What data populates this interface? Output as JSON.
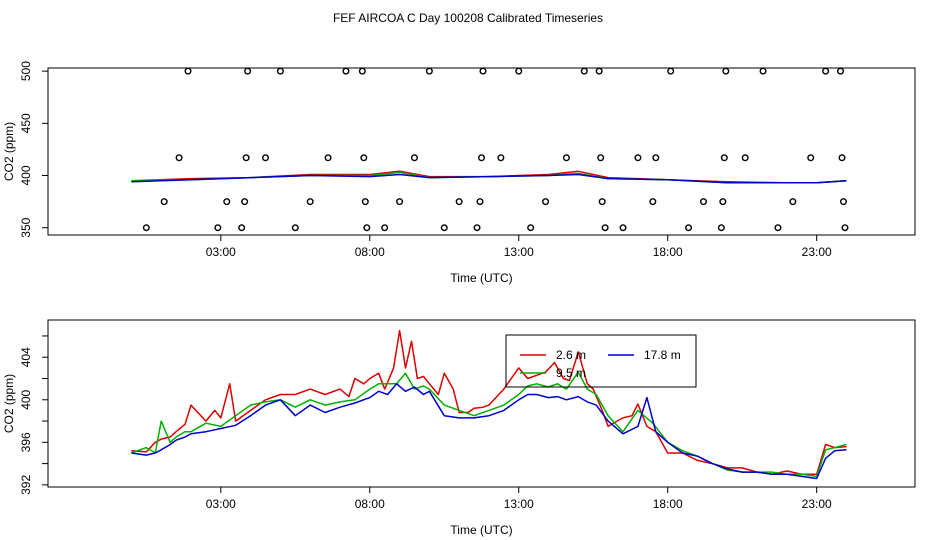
{
  "figure_title": "FEF AIRCOA C  Day 100208  Calibrated Timeseries",
  "colors": {
    "red": "#dd0000",
    "green": "#00b000",
    "blue": "#0000cc",
    "purple": "#6600aa"
  },
  "chart_data": [
    {
      "type": "scatter+line",
      "xlabel": "Time (UTC)",
      "ylabel": "CO2 (ppm)",
      "xlim": [
        -2.8,
        26.3
      ],
      "ylim": [
        343,
        503
      ],
      "xticks": [
        {
          "v": 3,
          "label": "03:00"
        },
        {
          "v": 8,
          "label": "08:00"
        },
        {
          "v": 13,
          "label": "13:00"
        },
        {
          "v": 18,
          "label": "18:00"
        },
        {
          "v": 23,
          "label": "23:00"
        }
      ],
      "yticks": [
        {
          "v": 350,
          "label": "350"
        },
        {
          "v": 400,
          "label": "400"
        },
        {
          "v": 450,
          "label": "450"
        },
        {
          "v": 500,
          "label": "500"
        }
      ],
      "points": [
        [
          0.5,
          350
        ],
        [
          1.1,
          375
        ],
        [
          1.6,
          417
        ],
        [
          1.9,
          500
        ],
        [
          2.9,
          350
        ],
        [
          3.2,
          375
        ],
        [
          3.7,
          350
        ],
        [
          3.8,
          375
        ],
        [
          3.85,
          417
        ],
        [
          3.9,
          500
        ],
        [
          4.5,
          417
        ],
        [
          5.0,
          500
        ],
        [
          5.5,
          350
        ],
        [
          6.0,
          375
        ],
        [
          6.6,
          417
        ],
        [
          7.2,
          500
        ],
        [
          7.75,
          500
        ],
        [
          7.8,
          417
        ],
        [
          7.85,
          375
        ],
        [
          7.9,
          350
        ],
        [
          8.5,
          350
        ],
        [
          9.0,
          375
        ],
        [
          9.5,
          417
        ],
        [
          10.0,
          500
        ],
        [
          10.5,
          350
        ],
        [
          11.0,
          375
        ],
        [
          11.6,
          350
        ],
        [
          11.7,
          375
        ],
        [
          11.75,
          417
        ],
        [
          11.8,
          500
        ],
        [
          12.4,
          417
        ],
        [
          13.0,
          500
        ],
        [
          13.4,
          350
        ],
        [
          13.9,
          375
        ],
        [
          14.6,
          417
        ],
        [
          15.2,
          500
        ],
        [
          15.7,
          500
        ],
        [
          15.75,
          417
        ],
        [
          15.8,
          375
        ],
        [
          15.9,
          350
        ],
        [
          16.5,
          350
        ],
        [
          17.0,
          417
        ],
        [
          17.5,
          375
        ],
        [
          17.6,
          417
        ],
        [
          18.1,
          500
        ],
        [
          18.7,
          350
        ],
        [
          19.2,
          375
        ],
        [
          19.8,
          350
        ],
        [
          19.85,
          375
        ],
        [
          19.9,
          417
        ],
        [
          19.95,
          500
        ],
        [
          20.6,
          417
        ],
        [
          21.2,
          500
        ],
        [
          21.7,
          350
        ],
        [
          22.2,
          375
        ],
        [
          22.8,
          417
        ],
        [
          23.3,
          500
        ],
        [
          23.8,
          500
        ],
        [
          23.85,
          417
        ],
        [
          23.9,
          375
        ],
        [
          23.95,
          350
        ]
      ],
      "series": [
        {
          "name": "2.6 m",
          "color": "#dd0000",
          "x": [
            0,
            2,
            4,
            6,
            8,
            9,
            10,
            12,
            14,
            15,
            16,
            18,
            20,
            22,
            23,
            24
          ],
          "y": [
            395,
            397,
            398,
            401,
            401,
            404,
            399,
            399,
            401,
            404,
            398,
            396,
            394,
            393,
            393,
            395
          ]
        },
        {
          "name": "9.5 m",
          "color": "#00b000",
          "x": [
            0,
            2,
            4,
            6,
            8,
            9,
            10,
            12,
            14,
            15,
            16,
            18,
            20,
            22,
            23,
            24
          ],
          "y": [
            395,
            396,
            398,
            400,
            400,
            403,
            398,
            399,
            400,
            402,
            397,
            396,
            393,
            393,
            393,
            395
          ]
        },
        {
          "name": "17.8 m",
          "color": "#0000cc",
          "x": [
            0,
            2,
            4,
            6,
            8,
            9,
            10,
            12,
            14,
            15,
            16,
            18,
            20,
            22,
            23,
            24
          ],
          "y": [
            394,
            396,
            398,
            400,
            399,
            401,
            398,
            399,
            400,
            401,
            397,
            396,
            393,
            393,
            393,
            395
          ]
        }
      ]
    },
    {
      "type": "line",
      "xlabel": "Time (UTC)",
      "ylabel": "CO2 (ppm)",
      "xlim": [
        -2.8,
        26.3
      ],
      "ylim": [
        391.8,
        407.5
      ],
      "xticks": [
        {
          "v": 3,
          "label": "03:00"
        },
        {
          "v": 8,
          "label": "08:00"
        },
        {
          "v": 13,
          "label": "13:00"
        },
        {
          "v": 18,
          "label": "18:00"
        },
        {
          "v": 23,
          "label": "23:00"
        }
      ],
      "yticks": [
        {
          "v": 392,
          "label": "392"
        },
        {
          "v": 394,
          "label": ""
        },
        {
          "v": 396,
          "label": "396"
        },
        {
          "v": 398,
          "label": ""
        },
        {
          "v": 400,
          "label": "400"
        },
        {
          "v": 402,
          "label": ""
        },
        {
          "v": 404,
          "label": "404"
        },
        {
          "v": 406,
          "label": ""
        }
      ],
      "legend": {
        "position": "top-center",
        "entries": [
          "2.6 m",
          "17.8 m",
          "9.5 m"
        ]
      },
      "series": [
        {
          "name": "2.6 m",
          "color": "#dd0000",
          "x": [
            0,
            0.5,
            0.8,
            1,
            1.3,
            1.5,
            1.8,
            2,
            2.5,
            2.8,
            3,
            3.3,
            3.5,
            4,
            4.5,
            5,
            5.5,
            6,
            6.5,
            7,
            7.3,
            7.5,
            7.8,
            8,
            8.3,
            8.5,
            8.8,
            9,
            9.2,
            9.4,
            9.6,
            9.8,
            10,
            10.3,
            10.5,
            10.8,
            11,
            11.3,
            11.5,
            11.8,
            12,
            12.5,
            13,
            13.3,
            13.6,
            13.9,
            14.2,
            14.5,
            14.7,
            15,
            15.3,
            15.5,
            15.8,
            16,
            16.3,
            16.5,
            16.8,
            17,
            17.3,
            17.6,
            18,
            18.5,
            19,
            19.5,
            20,
            20.5,
            21,
            21.5,
            22,
            22.5,
            23,
            23.3,
            23.6,
            24
          ],
          "y": [
            395.2,
            395.1,
            396,
            396.3,
            396.5,
            397,
            397.7,
            399.5,
            398,
            399,
            398.3,
            401.5,
            398,
            399,
            400,
            400.5,
            400.5,
            401,
            400.5,
            401,
            400.3,
            402,
            401.5,
            402,
            402.5,
            401,
            403,
            406.5,
            403,
            405.5,
            402,
            402.2,
            401.5,
            400.5,
            402.5,
            401,
            398.8,
            398.8,
            399.2,
            399.3,
            399.5,
            401,
            403,
            402,
            402.3,
            402.6,
            403.5,
            402,
            401.8,
            404.5,
            401.5,
            401,
            399,
            397.5,
            398,
            398.3,
            398.5,
            399.6,
            397.5,
            397,
            395,
            395,
            394.3,
            394,
            393.6,
            393.6,
            393.2,
            393,
            393.3,
            393,
            393,
            395.8,
            395.5,
            395.6
          ]
        },
        {
          "name": "9.5 m",
          "color": "#00b000",
          "x": [
            0,
            0.5,
            0.8,
            1,
            1.3,
            1.5,
            1.8,
            2,
            2.5,
            3,
            3.5,
            4,
            4.5,
            5,
            5.5,
            6,
            6.5,
            7,
            7.5,
            8,
            8.3,
            8.6,
            8.9,
            9.2,
            9.5,
            9.8,
            10,
            10.5,
            11,
            11.5,
            12,
            12.5,
            13,
            13.3,
            13.6,
            14,
            14.3,
            14.6,
            15,
            15.3,
            15.6,
            16,
            16.5,
            17,
            17.5,
            18,
            18.5,
            19,
            19.5,
            20,
            20.5,
            21,
            21.5,
            22,
            22.5,
            23,
            23.3,
            23.6,
            24
          ],
          "y": [
            395,
            395.5,
            395,
            398,
            396,
            396.5,
            397,
            397,
            397.8,
            397.5,
            398.5,
            399.5,
            399.8,
            400,
            399.3,
            400,
            399.5,
            399.8,
            400,
            401,
            401.5,
            401.5,
            401.5,
            402.5,
            401,
            401.3,
            401,
            399.5,
            399,
            398.5,
            399,
            399.5,
            400.5,
            401.3,
            401.5,
            401.2,
            401.5,
            401,
            402.6,
            401,
            400.5,
            398.5,
            397,
            399,
            397.8,
            396,
            395.2,
            394.7,
            394,
            393.4,
            393.2,
            393.2,
            393.2,
            393,
            393,
            392.8,
            395.3,
            395.5,
            395.8
          ]
        },
        {
          "name": "17.8 m",
          "color": "#0000cc",
          "x": [
            0,
            0.5,
            0.8,
            1,
            1.3,
            1.5,
            1.8,
            2,
            2.5,
            3,
            3.5,
            4,
            4.5,
            5,
            5.5,
            6,
            6.5,
            7,
            7.5,
            8,
            8.3,
            8.6,
            8.9,
            9.2,
            9.5,
            9.8,
            10,
            10.5,
            11,
            11.5,
            12,
            12.5,
            13,
            13.3,
            13.6,
            14,
            14.3,
            14.6,
            15,
            15.3,
            15.6,
            16,
            16.5,
            17,
            17.3,
            17.6,
            18,
            18.5,
            19,
            19.5,
            20,
            20.5,
            21,
            21.5,
            22,
            22.5,
            23,
            23.3,
            23.6,
            24
          ],
          "y": [
            395,
            394.8,
            395,
            395.3,
            395.8,
            396.2,
            396.5,
            396.8,
            397,
            397.3,
            397.6,
            398.5,
            399.5,
            400,
            398.5,
            399.5,
            398.8,
            399.3,
            399.7,
            400.2,
            400.8,
            400.5,
            401.5,
            400.8,
            401.2,
            400.5,
            400.8,
            398.5,
            398.3,
            398.3,
            398.5,
            399,
            400,
            400.5,
            400.5,
            400.2,
            400.3,
            400,
            400.3,
            399.8,
            399.5,
            398,
            396.8,
            397.5,
            400.2,
            397,
            396,
            395,
            394.7,
            394,
            393.5,
            393.2,
            393.2,
            393,
            393,
            392.8,
            392.6,
            394.5,
            395.2,
            395.3
          ]
        }
      ]
    }
  ]
}
